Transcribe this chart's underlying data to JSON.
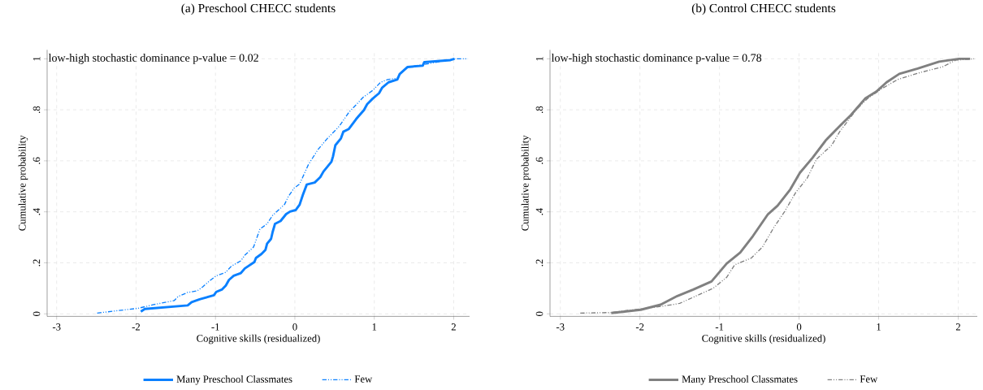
{
  "chart_data": [
    {
      "type": "line",
      "title": "(a) Preschool CHECC students",
      "xlabel": "Cognitive skills (residualized)",
      "ylabel": "Cumulative probability",
      "annotations": [
        "low-high stochastic dominance p-value = 0.02"
      ],
      "xlim": [
        -3.12,
        2.2
      ],
      "ylim": [
        -0.01,
        1.035
      ],
      "xticks": [
        -3,
        -2,
        -1,
        0,
        1,
        2
      ],
      "yticks": [
        0,
        {
          "value": 0.2,
          "label": ".2"
        },
        {
          "value": 0.4,
          "label": ".4"
        },
        {
          "value": 0.6,
          "label": ".6"
        },
        {
          "value": 0.8,
          "label": ".8"
        },
        1
      ],
      "grid": true,
      "legend": "bottom",
      "series": [
        {
          "name": "Many Preschool Classmates",
          "color": "#0a80ff",
          "line_style": "solid",
          "x": [
            -1.94,
            -1.89,
            -1.35,
            -1.3,
            -1.2,
            -1.02,
            -0.99,
            -0.92,
            -0.87,
            -0.83,
            -0.77,
            -0.68,
            -0.63,
            -0.51,
            -0.49,
            -0.42,
            -0.37,
            -0.35,
            -0.3,
            -0.28,
            -0.25,
            -0.18,
            -0.11,
            -0.06,
            0.01,
            0.06,
            0.1,
            0.15,
            0.25,
            0.32,
            0.36,
            0.46,
            0.48,
            0.51,
            0.58,
            0.61,
            0.68,
            0.77,
            0.8,
            0.87,
            0.91,
            0.98,
            1.06,
            1.1,
            1.18,
            1.29,
            1.32,
            1.42,
            1.61,
            1.63,
            1.96,
            2.01
          ],
          "values": [
            0.009,
            0.019,
            0.033,
            0.046,
            0.057,
            0.073,
            0.086,
            0.095,
            0.111,
            0.133,
            0.149,
            0.16,
            0.178,
            0.203,
            0.219,
            0.235,
            0.251,
            0.275,
            0.294,
            0.321,
            0.353,
            0.364,
            0.391,
            0.401,
            0.407,
            0.428,
            0.466,
            0.507,
            0.515,
            0.536,
            0.558,
            0.596,
            0.617,
            0.661,
            0.688,
            0.714,
            0.725,
            0.763,
            0.774,
            0.799,
            0.822,
            0.844,
            0.865,
            0.887,
            0.908,
            0.919,
            0.94,
            0.968,
            0.973,
            0.987,
            0.995,
            1.0
          ]
        },
        {
          "name": "Few",
          "color": "#0a80ff",
          "line_style": "dashed",
          "x": [
            -2.49,
            -1.97,
            -1.78,
            -1.52,
            -1.47,
            -1.35,
            -1.23,
            -1.16,
            -1.08,
            -0.99,
            -0.87,
            -0.8,
            -0.68,
            -0.63,
            -0.52,
            -0.44,
            -0.35,
            -0.28,
            -0.13,
            -0.08,
            -0.01,
            0.06,
            0.17,
            0.29,
            0.41,
            0.56,
            0.68,
            0.86,
            0.98,
            1.08,
            1.17,
            1.29,
            1.34,
            1.42,
            1.63,
            2.01,
            2.18
          ],
          "values": [
            0.003,
            0.022,
            0.036,
            0.052,
            0.068,
            0.084,
            0.09,
            0.106,
            0.128,
            0.149,
            0.163,
            0.187,
            0.208,
            0.23,
            0.262,
            0.332,
            0.353,
            0.386,
            0.429,
            0.461,
            0.493,
            0.509,
            0.585,
            0.644,
            0.688,
            0.736,
            0.79,
            0.849,
            0.876,
            0.908,
            0.919,
            0.924,
            0.946,
            0.968,
            0.978,
            1.0,
            1.0
          ]
        }
      ]
    },
    {
      "type": "line",
      "title": "(b) Control CHECC students",
      "xlabel": "Cognitive skills (residualized)",
      "ylabel": "Cumulative probability",
      "annotations": [
        "low-high stochastic dominance p-value = 0.78"
      ],
      "xlim": [
        -3.13,
        2.24
      ],
      "ylim": [
        -0.01,
        1.035
      ],
      "xticks": [
        -3,
        -2,
        -1,
        0,
        1,
        2
      ],
      "yticks": [
        0,
        {
          "value": 0.2,
          "label": ".2"
        },
        {
          "value": 0.4,
          "label": ".4"
        },
        {
          "value": 0.6,
          "label": ".6"
        },
        {
          "value": 0.8,
          "label": ".8"
        },
        1
      ],
      "grid": true,
      "legend": "bottom",
      "series": [
        {
          "name": "Many Preschool Classmates",
          "color": "#808080",
          "line_style": "solid",
          "x": [
            -2.36,
            -1.99,
            -1.74,
            -1.53,
            -1.33,
            -1.1,
            -0.91,
            -0.74,
            -0.58,
            -0.39,
            -0.27,
            -0.11,
            0.01,
            0.17,
            0.34,
            0.51,
            0.65,
            0.83,
            0.97,
            1.1,
            1.26,
            1.49,
            1.76,
            2.01,
            2.15
          ],
          "values": [
            0.003,
            0.016,
            0.036,
            0.07,
            0.095,
            0.127,
            0.197,
            0.24,
            0.305,
            0.391,
            0.424,
            0.488,
            0.553,
            0.612,
            0.682,
            0.736,
            0.779,
            0.844,
            0.871,
            0.908,
            0.941,
            0.962,
            0.989,
            1.0,
            1.0
          ]
        },
        {
          "name": "Few",
          "color": "#808080",
          "line_style": "dashed",
          "x": [
            -2.75,
            -2.37,
            -1.71,
            -1.5,
            -1.08,
            -0.91,
            -0.81,
            -0.6,
            -0.46,
            -0.32,
            -0.18,
            -0.04,
            0.1,
            0.22,
            0.41,
            0.51,
            0.72,
            0.86,
            1.03,
            1.24,
            1.52,
            1.8,
            1.97,
            2.2
          ],
          "values": [
            0.003,
            0.005,
            0.03,
            0.041,
            0.1,
            0.143,
            0.192,
            0.219,
            0.262,
            0.337,
            0.402,
            0.477,
            0.531,
            0.607,
            0.661,
            0.714,
            0.801,
            0.844,
            0.881,
            0.919,
            0.946,
            0.968,
            0.995,
            1.0
          ]
        }
      ]
    }
  ]
}
